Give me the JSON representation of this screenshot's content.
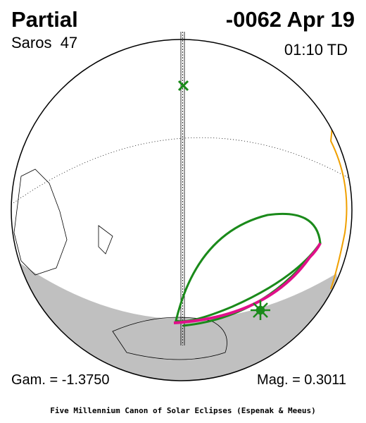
{
  "header": {
    "type": "Partial",
    "date": "-0062 Apr 19",
    "saros": "Saros  47",
    "time": "01:10 TD"
  },
  "footer": {
    "gamma": "Gam. = -1.3750",
    "magnitude": "Mag. = 0.3011",
    "credit": "Five Millennium Canon of Solar Eclipses (Espenak & Meeus)"
  }
}
